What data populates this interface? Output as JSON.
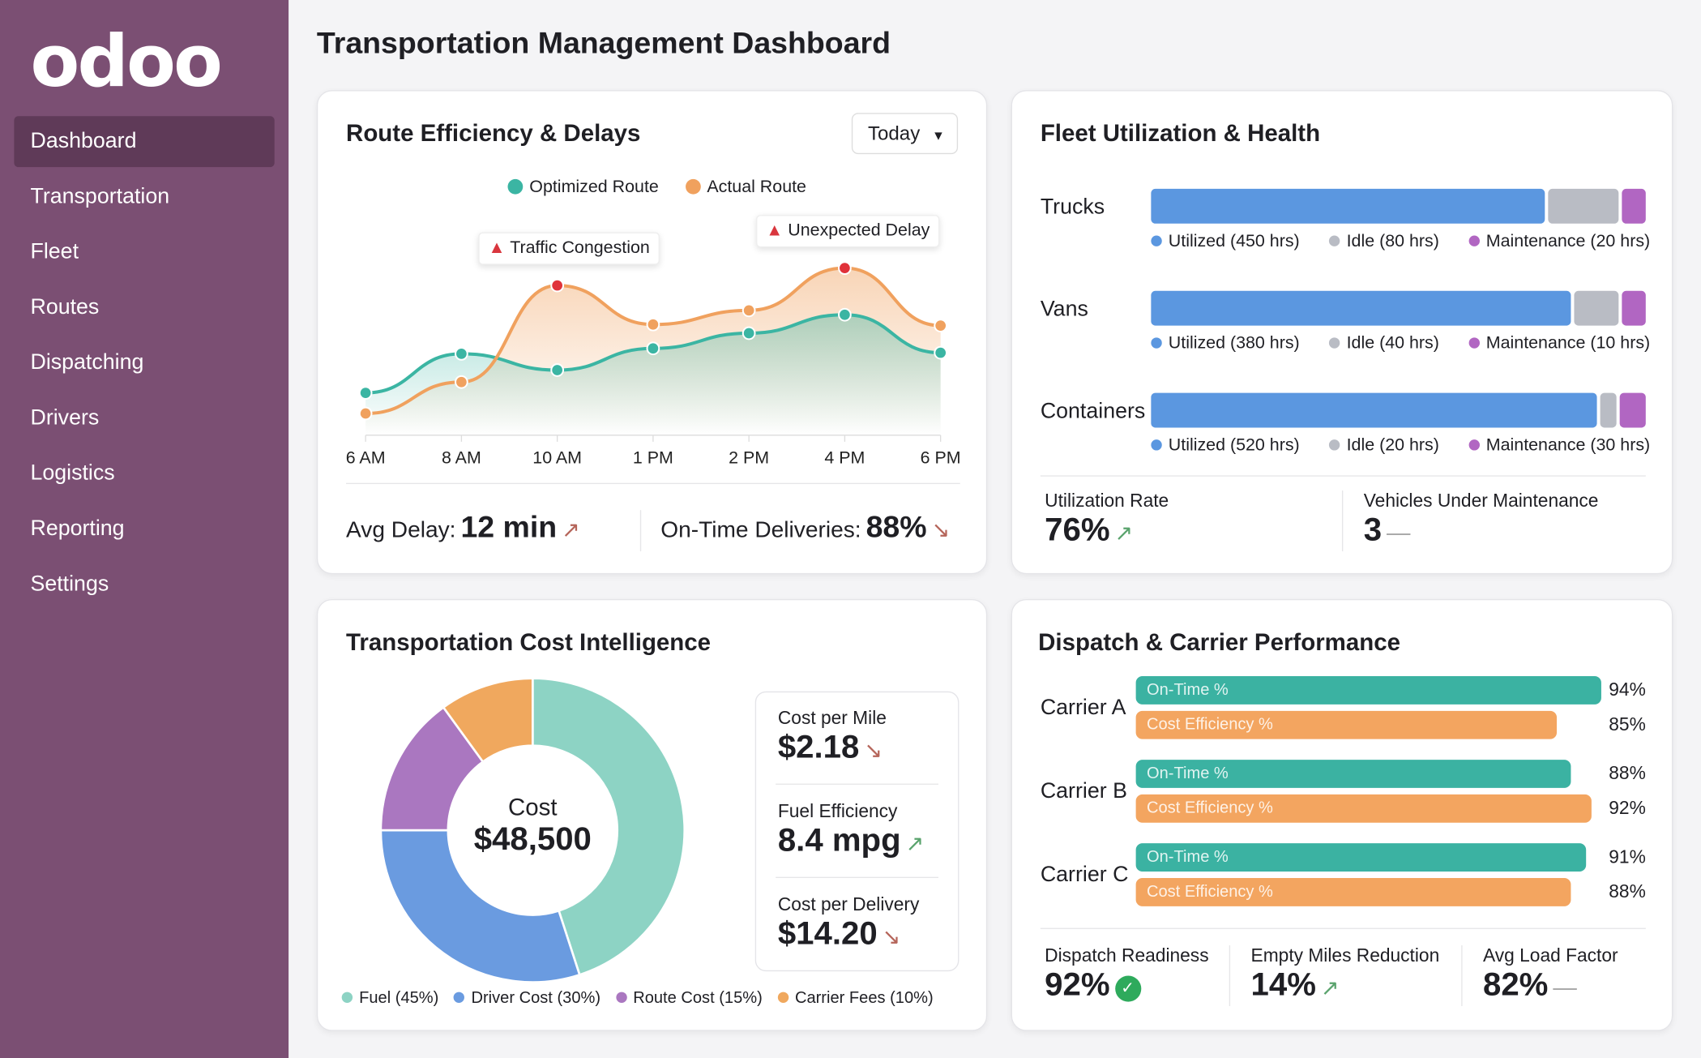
{
  "app": {
    "logo": "odoo",
    "title": "Transportation Management Dashboard"
  },
  "sidebar": {
    "items": [
      {
        "label": "Dashboard",
        "active": true
      },
      {
        "label": "Transportation"
      },
      {
        "label": "Fleet"
      },
      {
        "label": "Routes"
      },
      {
        "label": "Dispatching"
      },
      {
        "label": "Drivers"
      },
      {
        "label": "Logistics"
      },
      {
        "label": "Reporting"
      },
      {
        "label": "Settings"
      }
    ]
  },
  "route": {
    "title": "Route Efficiency & Delays",
    "filter": "Today",
    "callouts": [
      "Traffic Congestion",
      "Unexpected Delay"
    ],
    "avg_delay_label": "Avg Delay:",
    "avg_delay": "12 min",
    "avg_delay_trend": "↗",
    "ontime_label": "On-Time Deliveries:",
    "ontime": "88%",
    "ontime_trend": "↘"
  },
  "chart_data": {
    "type": "line",
    "categories": [
      "6 AM",
      "8 AM",
      "10 AM",
      "1 PM",
      "2 PM",
      "4 PM",
      "6 PM"
    ],
    "series": [
      {
        "name": "Optimized Route",
        "color": "#3bb5a3",
        "values": [
          19.5,
          37.5,
          30,
          40,
          47,
          55.5,
          38
        ]
      },
      {
        "name": "Actual Route",
        "color": "#f0a15e",
        "values": [
          10,
          24.5,
          69,
          51,
          57.5,
          77,
          50.5
        ]
      }
    ],
    "ylim": [
      0,
      100
    ],
    "legend": "top",
    "grid": false,
    "highlight_points": [
      {
        "series": "Actual Route",
        "x": "10 AM",
        "label": "Traffic Congestion"
      },
      {
        "series": "Actual Route",
        "x": "4 PM",
        "label": "Unexpected Delay"
      }
    ]
  },
  "fleet": {
    "title": "Fleet Utilization & Health",
    "colors": {
      "utilized": "#5b97e0",
      "idle": "#b9bcc4",
      "maintenance": "#b166c2"
    },
    "rows": [
      {
        "name": "Trucks",
        "utilized": 450,
        "idle": 80,
        "maintenance": 20,
        "l1": "Utilized (450 hrs)",
        "l2": "Idle (80 hrs)",
        "l3": "Maintenance (20 hrs)"
      },
      {
        "name": "Vans",
        "utilized": 380,
        "idle": 40,
        "maintenance": 10,
        "l1": "Utilized (380 hrs)",
        "l2": "Idle (40 hrs)",
        "l3": "Maintenance (10 hrs)"
      },
      {
        "name": "Containers",
        "utilized": 520,
        "idle": 20,
        "maintenance": 30,
        "l1": "Utilized (520 hrs)",
        "l2": "Idle (20 hrs)",
        "l3": "Maintenance (30 hrs)"
      }
    ],
    "util_label": "Utilization Rate",
    "util_value": "76%",
    "util_trend": "↗",
    "maint_label": "Vehicles Under Maintenance",
    "maint_value": "3"
  },
  "cost": {
    "title": "Transportation Cost Intelligence",
    "center_label": "Cost",
    "center_value": "$48,500",
    "slices": [
      {
        "label": "Fuel (45%)",
        "value": 45,
        "color": "#8dd3c4"
      },
      {
        "label": "Driver Cost (30%)",
        "value": 30,
        "color": "#6a9be0"
      },
      {
        "label": "Route Cost (15%)",
        "value": 15,
        "color": "#aa77c0"
      },
      {
        "label": "Carrier Fees (10%)",
        "value": 10,
        "color": "#f0a85e"
      }
    ],
    "metrics": [
      {
        "label": "Cost per Mile",
        "value": "$2.18",
        "trend": "↘",
        "dir": "down"
      },
      {
        "label": "Fuel Efficiency",
        "value": "8.4 mpg",
        "trend": "↗",
        "dir": "up"
      },
      {
        "label": "Cost per Delivery",
        "value": "$14.20",
        "trend": "↘",
        "dir": "down"
      }
    ]
  },
  "dispatch": {
    "title": "Dispatch & Carrier Performance",
    "ontime_label": "On-Time %",
    "cost_label": "Cost Efficiency %",
    "carriers": [
      {
        "name": "Carrier A",
        "ontime": 94,
        "cost": 85,
        "ontime_txt": "94%",
        "cost_txt": "85%"
      },
      {
        "name": "Carrier B",
        "ontime": 88,
        "cost": 92,
        "ontime_txt": "88%",
        "cost_txt": "92%"
      },
      {
        "name": "Carrier C",
        "ontime": 91,
        "cost": 88,
        "ontime_txt": "91%",
        "cost_txt": "88%"
      }
    ],
    "kpis": [
      {
        "label": "Dispatch Readiness",
        "value": "92%"
      },
      {
        "label": "Empty Miles Reduction",
        "value": "14%",
        "trend": "↗"
      },
      {
        "label": "Avg Load Factor",
        "value": "82%"
      }
    ]
  }
}
